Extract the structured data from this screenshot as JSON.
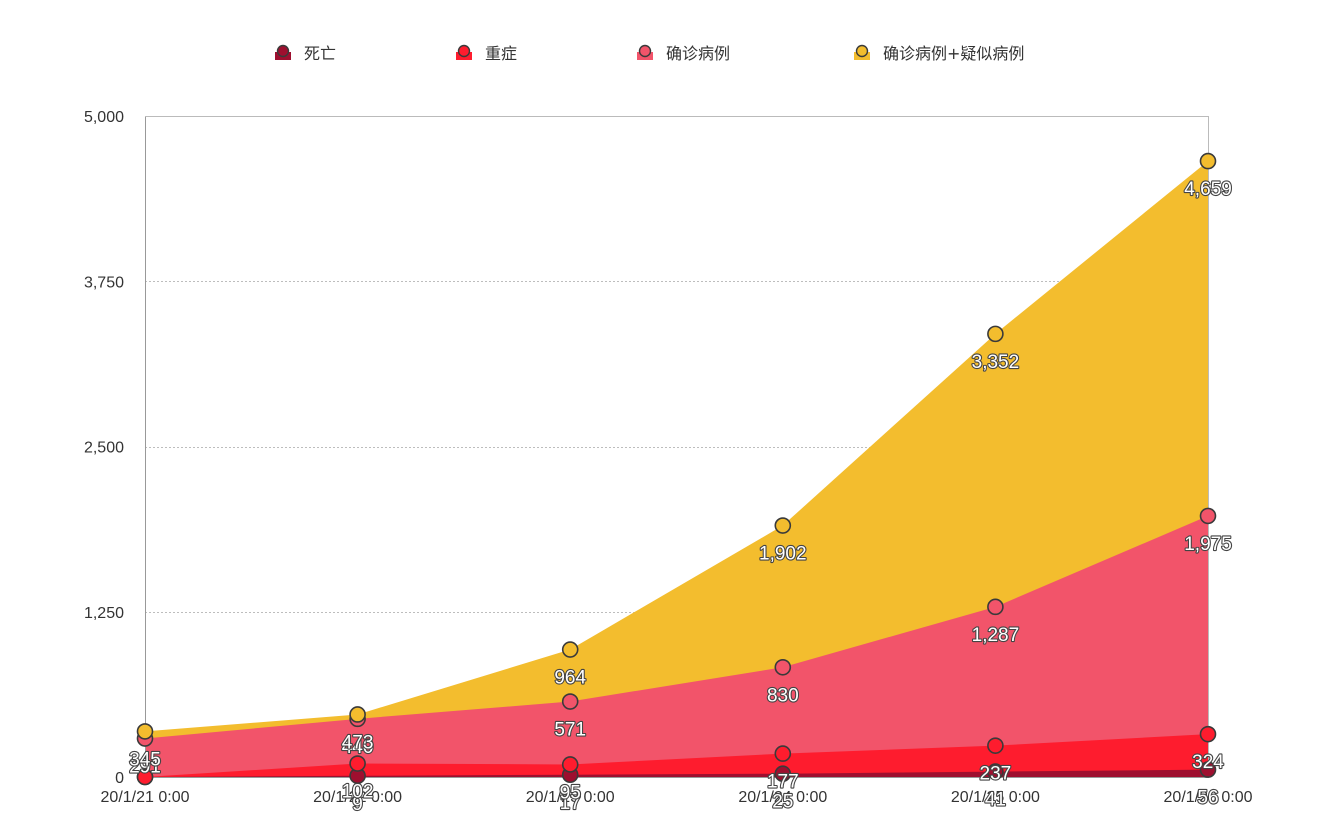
{
  "chart_data": {
    "type": "area",
    "title": "",
    "xlabel": "",
    "ylabel": "",
    "x": [
      "20/1/21 0:00",
      "20/1/22 0:00",
      "20/1/23 0:00",
      "20/1/24 0:00",
      "20/1/25 0:00",
      "20/1/26 0:00"
    ],
    "ylim": [
      0,
      5000
    ],
    "y_ticks": [
      "0",
      "1,250",
      "2,500",
      "3,750",
      "5,000"
    ],
    "y_tick_values": [
      0,
      1250,
      2500,
      3750,
      5000
    ],
    "grid": true,
    "legend_position": "top",
    "stacked": false,
    "series": [
      {
        "name": "死亡",
        "color": "#9e0f2f",
        "values": [
          0,
          9,
          17,
          25,
          41,
          56
        ],
        "labels": [
          "",
          "9",
          "17",
          "25",
          "41",
          "56"
        ]
      },
      {
        "name": "重症",
        "color": "#fe1c2e",
        "values": [
          0,
          102,
          95,
          177,
          237,
          324
        ],
        "labels": [
          "",
          "102",
          "95",
          "177",
          "237",
          "324"
        ]
      },
      {
        "name": "确诊病例",
        "color": "#f2546a",
        "values": [
          291,
          440,
          571,
          830,
          1287,
          1975
        ],
        "labels": [
          "291",
          "440",
          "571",
          "830",
          "1,287",
          "1,975"
        ]
      },
      {
        "name": "确诊病例+疑似病例",
        "color": "#f3bd2e",
        "values": [
          345,
          473,
          964,
          1902,
          3352,
          4659
        ],
        "labels": [
          "345",
          "473",
          "964",
          "1,902",
          "3,352",
          "4,659"
        ]
      }
    ]
  }
}
